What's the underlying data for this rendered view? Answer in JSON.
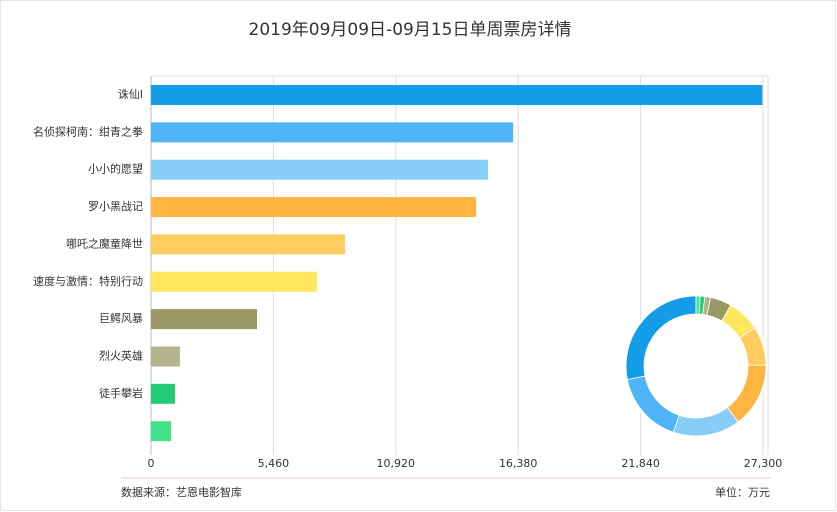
{
  "chart_data": {
    "type": "bar",
    "orientation": "horizontal",
    "title": "2019年09月09日-09月15日单周票房详情",
    "categories": [
      "诛仙Ⅰ",
      "名侦探柯南：绀青之拳",
      "小小的愿望",
      "罗小黑战记",
      "哪吒之魔童降世",
      "速度与激情：特别行动",
      "巨鳄风暴",
      "烈火英雄",
      "徒手攀岩",
      null
    ],
    "values": [
      27270,
      16150,
      15030,
      14500,
      8650,
      7400,
      4730,
      1290,
      1070,
      890
    ],
    "colors": [
      "#139de8",
      "#4fb4f5",
      "#87cdf8",
      "#ffb53f",
      "#ffcc5e",
      "#ffe65c",
      "#999966",
      "#b3b38f",
      "#22cc77",
      "#45e28c"
    ],
    "xlim": [
      0,
      27300
    ],
    "xticks": [
      0,
      {
        "value": 5460,
        "label": "5,460"
      },
      {
        "value": 10920,
        "label": "10,920"
      },
      {
        "value": 16380,
        "label": "16,380"
      },
      {
        "value": 21840,
        "label": "21,840"
      },
      {
        "value": 27300,
        "label": "27,300"
      }
    ],
    "grid": true,
    "inset_donut": true,
    "source": "数据来源：艺恩电影智库",
    "unit": "单位：万元"
  }
}
